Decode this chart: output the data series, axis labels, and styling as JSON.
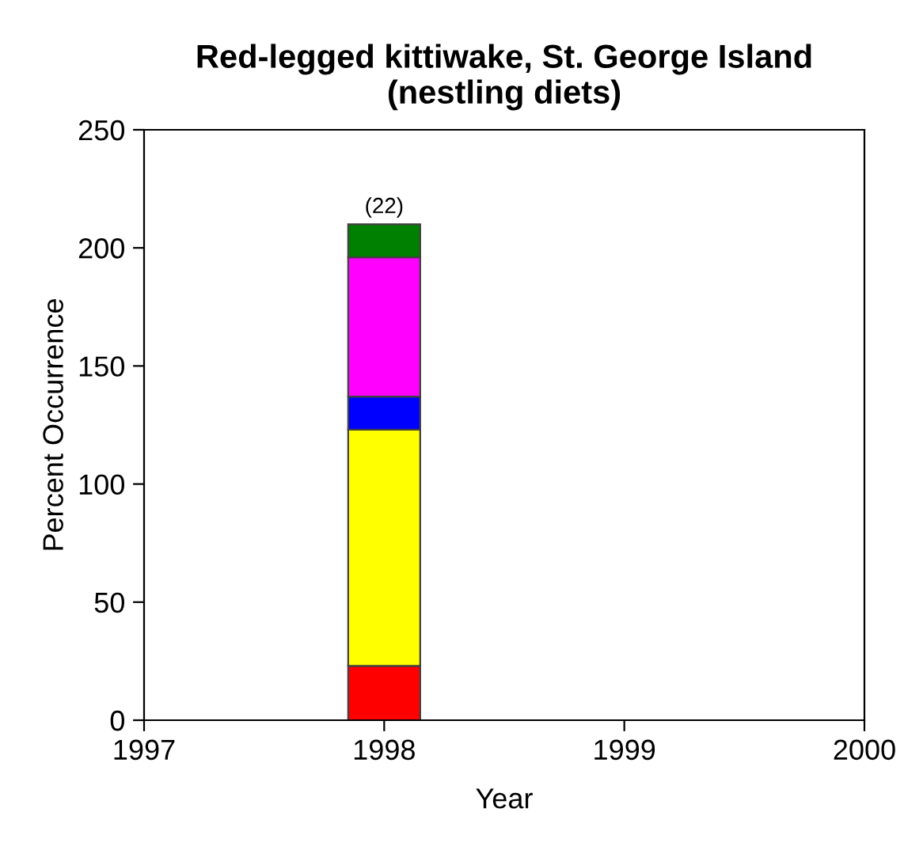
{
  "chart_data": {
    "type": "bar",
    "stacked": true,
    "title": "Red-legged kittiwake, St. George Island\n(nestling diets)",
    "xlabel": "Year",
    "ylabel": "Percent Occurrence",
    "x": [
      1998
    ],
    "series": [
      {
        "color": "#ff0000",
        "values": [
          23
        ]
      },
      {
        "color": "#ffff00",
        "values": [
          100
        ]
      },
      {
        "color": "#0000ff",
        "values": [
          14
        ]
      },
      {
        "color": "#ff00ff",
        "values": [
          59
        ]
      },
      {
        "color": "#008000",
        "values": [
          14
        ]
      }
    ],
    "annotations": [
      {
        "text": "(22)",
        "x": 1998,
        "y": 210
      }
    ],
    "xlim": [
      1997,
      2000
    ],
    "xticks": [
      1997,
      1998,
      1999,
      2000
    ],
    "ylim": [
      0,
      250
    ],
    "yticks": [
      0,
      50,
      100,
      150,
      200,
      250
    ],
    "grid": false,
    "legend": false
  }
}
